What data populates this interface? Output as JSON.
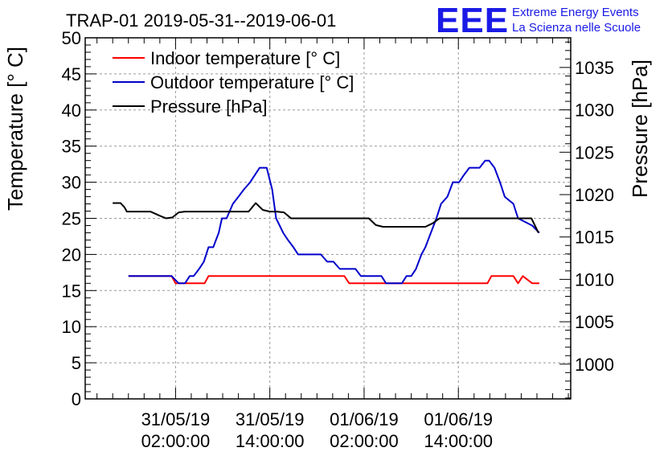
{
  "chart_data": {
    "type": "line",
    "title": "TRAP-01 2019-05-31--2019-06-01",
    "logo": {
      "mark": "EEE",
      "line1": "Extreme Energy Events",
      "line2": "La Scienza nelle Scuole"
    },
    "ylabel": "Temperature [° C]",
    "y2label": "Pressure [hPa]",
    "ylim": [
      0,
      50
    ],
    "y2lim": [
      995.9,
      1038.5
    ],
    "y_ticks": [
      "0",
      "5",
      "10",
      "15",
      "20",
      "25",
      "30",
      "35",
      "40",
      "45",
      "50"
    ],
    "y2_ticks": [
      "1000",
      "1005",
      "1010",
      "1015",
      "1020",
      "1025",
      "1030",
      "1035"
    ],
    "x_unit": "hours since 2019-05-31 00:00:00",
    "xlim": [
      -9.5,
      52.3
    ],
    "x_ticks": [
      {
        "line1": "31/05/19",
        "line2": "02:00:00"
      },
      {
        "line1": "31/05/19",
        "line2": "14:00:00"
      },
      {
        "line1": "01/06/19",
        "line2": "02:00:00"
      },
      {
        "line1": "01/06/19",
        "line2": "14:00:00"
      }
    ],
    "x_tick_values": [
      2,
      14,
      26,
      38
    ],
    "grid": true,
    "legend_position": "top-left",
    "series": [
      {
        "name": "Indoor temperature [° C]",
        "color": "#ff0000",
        "axis": "left",
        "x": [
          -4,
          1.5,
          2,
          3,
          5.7,
          6.2,
          9.1,
          23.5,
          24.1,
          39.4,
          39.6,
          41.7,
          42.2,
          43.9,
          45.0,
          45.6,
          46.2,
          47.4,
          48.3
        ],
        "y": [
          17,
          17,
          16,
          16,
          16,
          17,
          17,
          17,
          16,
          16,
          16,
          16,
          17,
          17,
          17,
          16,
          17,
          16,
          16
        ]
      },
      {
        "name": "Outdoor temperature [° C]",
        "color": "#0000cc",
        "axis": "left",
        "x": [
          -4,
          1.5,
          2.4,
          3.2,
          3.8,
          4.3,
          5.0,
          5.6,
          6.2,
          6.8,
          7.5,
          7.9,
          8.5,
          9.3,
          10.0,
          10.7,
          11.5,
          12.1,
          12.7,
          13.6,
          14.3,
          14.8,
          15.7,
          16.3,
          17.0,
          17.6,
          18.4,
          19.1,
          19.9,
          20.5,
          21.3,
          22.1,
          22.9,
          23.6,
          24.3,
          24.9,
          25.6,
          26.2,
          27.0,
          27.6,
          28.2,
          28.8,
          29.5,
          30.1,
          30.8,
          31.4,
          32.0,
          32.6,
          33.3,
          33.8,
          34.5,
          35.2,
          35.8,
          36.6,
          37.3,
          38.1,
          38.7,
          39.4,
          40.1,
          40.7,
          41.4,
          41.9,
          42.6,
          43.3,
          43.9,
          45.0,
          45.6,
          47.4,
          48.3
        ],
        "y": [
          17,
          17,
          16,
          16,
          17,
          17,
          18,
          19,
          21,
          21,
          23,
          25,
          25,
          27,
          28,
          29,
          30,
          31,
          32,
          32,
          29,
          25,
          23,
          22,
          21,
          20,
          20,
          20,
          20,
          20,
          19,
          19,
          18,
          18,
          18,
          18,
          17,
          17,
          17,
          17,
          17,
          16,
          16,
          16,
          16,
          17,
          17,
          18,
          20,
          21,
          23,
          25,
          27,
          28,
          30,
          30,
          31,
          32,
          32,
          32,
          33,
          33,
          32,
          30,
          28,
          27,
          25,
          24,
          23
        ]
      },
      {
        "name": "Pressure [hPa]",
        "color": "#000000",
        "axis": "right",
        "x": [
          -6,
          -5,
          -4.5,
          -4.2,
          -3.1,
          -2.1,
          -1.2,
          0,
          0.8,
          1.6,
          2.4,
          3.2,
          4.1,
          5.0,
          5.9,
          6.8,
          7.7,
          8.6,
          9.5,
          10.4,
          11.3,
          12.2,
          13.1,
          14,
          14.9,
          15.8,
          16.7,
          17.6,
          18.5,
          19.4,
          20.3,
          21.2,
          22.1,
          23.0,
          23.9,
          24.8,
          25.7,
          26.6,
          27.5,
          28.4,
          29.3,
          30.2,
          31.1,
          32.0,
          32.9,
          33.8,
          34.7,
          35.6,
          36.5,
          37.4,
          38.3,
          39.2,
          40.1,
          41.0,
          41.9,
          42.8,
          43.7,
          44.6,
          45.5,
          46.4,
          47.3,
          48.2
        ],
        "y": [
          1019,
          1019,
          1018.5,
          1018,
          1018,
          1018,
          1018,
          1017.5,
          1017.2,
          1017.3,
          1017.9,
          1018,
          1018,
          1018,
          1018,
          1018,
          1018,
          1018,
          1018,
          1018,
          1018,
          1019,
          1018.2,
          1018,
          1018,
          1017.9,
          1017.2,
          1017.2,
          1017.2,
          1017.2,
          1017.2,
          1017.2,
          1017.2,
          1017.2,
          1017.2,
          1017.2,
          1017.2,
          1017.2,
          1016.4,
          1016.2,
          1016.2,
          1016.2,
          1016.2,
          1016.2,
          1016.2,
          1016.2,
          1016.6,
          1017.2,
          1017.2,
          1017.2,
          1017.2,
          1017.2,
          1017.2,
          1017.2,
          1017.2,
          1017.2,
          1017.2,
          1017.2,
          1017.2,
          1017.2,
          1017.2,
          1015.5
        ]
      }
    ]
  }
}
